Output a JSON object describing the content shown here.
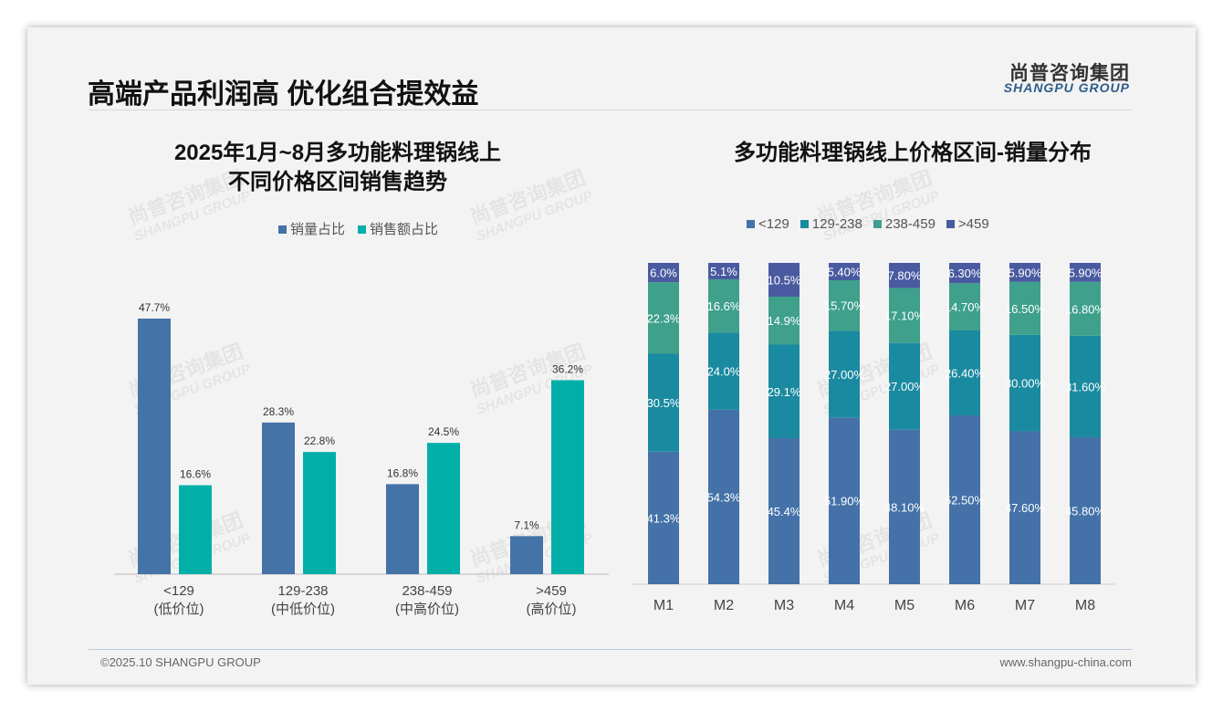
{
  "header": {
    "title": "高端产品利润高 优化组合提效益",
    "logo_cn": "尚普咨询集团",
    "logo_en": "SHANGPU GROUP"
  },
  "footer": {
    "copyright": "©2025.10 SHANGPU GROUP",
    "url": "www.shangpu-china.com"
  },
  "watermark": {
    "cn": "尚普咨询集团",
    "en": "SHANGPU GROUP"
  },
  "colors": {
    "blue": "#4473a8",
    "teal": "#00b0a8",
    "c1": "#4472a8",
    "c2": "#1a8aa0",
    "c3": "#3fa08c",
    "c4": "#4a5aa0"
  },
  "chart_data": [
    {
      "type": "bar",
      "title_line1": "2025年1月~8月多功能料理锅线上",
      "title_line2": "不同价格区间销售趋势",
      "categories": [
        "<129",
        "129-238",
        "238-459",
        ">459"
      ],
      "category_sub": [
        "(低价位)",
        "(中低价位)",
        "(中高价位)",
        "(高价位)"
      ],
      "series": [
        {
          "name": "销量占比",
          "values": [
            47.7,
            28.3,
            16.8,
            7.1
          ],
          "labels": [
            "47.7%",
            "28.3%",
            "16.8%",
            "7.1%"
          ]
        },
        {
          "name": "销售额占比",
          "values": [
            16.6,
            22.8,
            24.5,
            36.2
          ],
          "labels": [
            "16.6%",
            "22.8%",
            "24.5%",
            "36.2%"
          ]
        }
      ],
      "ylim": [
        0,
        50
      ],
      "legend": "top-center",
      "grid": false
    },
    {
      "type": "bar",
      "stacked": true,
      "title": "多功能料理锅线上价格区间-销量分布",
      "categories": [
        "M1",
        "M2",
        "M3",
        "M4",
        "M5",
        "M6",
        "M7",
        "M8"
      ],
      "series": [
        {
          "name": "<129",
          "values": [
            41.3,
            54.3,
            45.4,
            51.9,
            48.1,
            52.5,
            47.6,
            45.8
          ],
          "labels": [
            "41.3%",
            "54.3%",
            "45.4%",
            "51.90%",
            "48.10%",
            "52.50%",
            "47.60%",
            "45.80%"
          ]
        },
        {
          "name": "129-238",
          "values": [
            30.5,
            24.0,
            29.1,
            27.0,
            27.0,
            26.4,
            30.0,
            31.6
          ],
          "labels": [
            "30.5%",
            "24.0%",
            "29.1%",
            "27.00%",
            "27.00%",
            "26.40%",
            "30.00%",
            "31.60%"
          ]
        },
        {
          "name": "238-459",
          "values": [
            22.3,
            16.6,
            14.9,
            15.7,
            17.1,
            14.7,
            16.5,
            16.8
          ],
          "labels": [
            "22.3%",
            "16.6%",
            "14.9%",
            "15.70%",
            "17.10%",
            "14.70%",
            "16.50%",
            "16.80%"
          ]
        },
        {
          "name": ">459",
          "values": [
            6.0,
            5.1,
            10.5,
            5.4,
            7.8,
            6.3,
            5.9,
            5.9
          ],
          "labels": [
            "6.0%",
            "5.1%",
            "10.5%",
            "5.40%",
            "7.80%",
            "6.30%",
            "5.90%",
            "5.90%"
          ]
        }
      ],
      "ylim": [
        0,
        100
      ],
      "legend": "top-center",
      "grid": false
    }
  ]
}
